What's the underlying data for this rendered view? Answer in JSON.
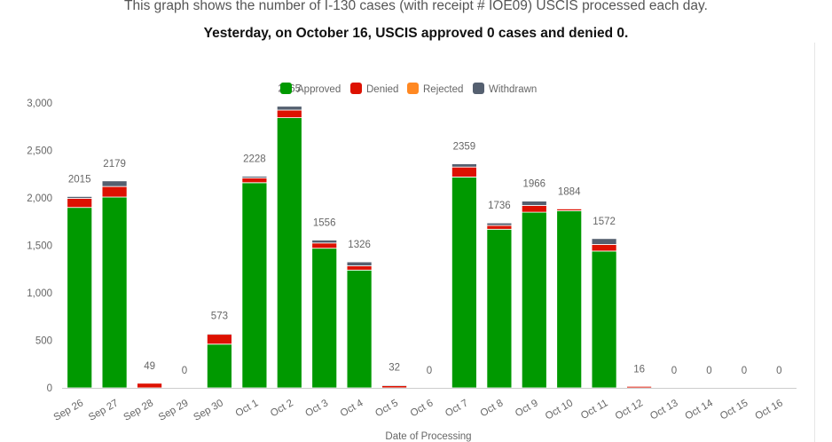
{
  "header": {
    "subtitle": "This graph shows the number of I-130 cases (with receipt # IOE09) USCIS processed each day.",
    "headline": "Yesterday, on October 16, USCIS approved 0 cases and denied 0."
  },
  "chart_data": {
    "type": "bar",
    "stacked": true,
    "categories": [
      "Sep 26",
      "Sep 27",
      "Sep 28",
      "Sep 29",
      "Sep 30",
      "Oct 1",
      "Oct 2",
      "Oct 3",
      "Oct 4",
      "Oct 5",
      "Oct 6",
      "Oct 7",
      "Oct 8",
      "Oct 9",
      "Oct 10",
      "Oct 11",
      "Oct 12",
      "Oct 13",
      "Oct 14",
      "Oct 15",
      "Oct 16"
    ],
    "series": [
      {
        "name": "Approved",
        "color": "#009900",
        "values": [
          1900,
          2010,
          0,
          0,
          460,
          2160,
          2845,
          1470,
          1240,
          0,
          0,
          2220,
          1670,
          1850,
          1865,
          1440,
          0,
          0,
          0,
          0,
          0
        ]
      },
      {
        "name": "Denied",
        "color": "#dd1100",
        "values": [
          95,
          110,
          49,
          0,
          105,
          50,
          80,
          55,
          45,
          28,
          0,
          105,
          40,
          70,
          19,
          70,
          16,
          0,
          0,
          0,
          0
        ]
      },
      {
        "name": "Rejected",
        "color": "#ff8822",
        "values": [
          0,
          0,
          0,
          0,
          0,
          0,
          0,
          0,
          0,
          0,
          0,
          0,
          0,
          0,
          0,
          0,
          0,
          0,
          0,
          0,
          0
        ]
      },
      {
        "name": "Withdrawn",
        "color": "#556070",
        "values": [
          20,
          59,
          0,
          0,
          8,
          18,
          40,
          31,
          41,
          4,
          0,
          34,
          26,
          46,
          0,
          62,
          0,
          0,
          0,
          0,
          0
        ]
      }
    ],
    "totals": [
      2015,
      2179,
      49,
      0,
      573,
      2228,
      2965,
      1556,
      1326,
      32,
      0,
      2359,
      1736,
      1966,
      1884,
      1572,
      16,
      0,
      0,
      0,
      0
    ],
    "total_labels": [
      "2015",
      "2179",
      "49",
      "0",
      "573",
      "2228",
      "2965",
      "1556",
      "1326",
      "32",
      "0",
      "2359",
      "1736",
      "1966",
      "1884",
      "1572",
      "16",
      "0",
      "0",
      "0",
      "0"
    ],
    "ylim": [
      0,
      3000
    ],
    "yticks": [
      0,
      500,
      1000,
      1500,
      2000,
      2500,
      3000
    ],
    "ytick_labels": [
      "0",
      "500",
      "1,000",
      "1,500",
      "2,000",
      "2,500",
      "3,000"
    ],
    "xlabel": "Date of Processing",
    "ylabel": "",
    "grid": false,
    "legend_position": "top-center"
  }
}
